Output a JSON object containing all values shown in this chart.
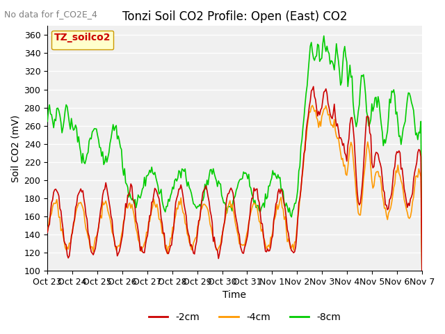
{
  "title": "Tonzi Soil CO2 Profile: Open (East) CO2",
  "subtitle": "No data for f_CO2E_4",
  "ylabel": "Soil CO2 (mV)",
  "xlabel": "Time",
  "legend_title": "TZ_soilco2",
  "ylim": [
    100,
    370
  ],
  "yticks": [
    100,
    120,
    140,
    160,
    180,
    200,
    220,
    240,
    260,
    280,
    300,
    320,
    340,
    360
  ],
  "xtick_labels": [
    "Oct 23",
    "Oct 24",
    "Oct 25",
    "Oct 26",
    "Oct 27",
    "Oct 28",
    "Oct 29",
    "Oct 30",
    "Oct 31",
    "Nov 1",
    "Nov 2",
    "Nov 3",
    "Nov 4",
    "Nov 5",
    "Nov 6",
    "Nov 7"
  ],
  "line_colors": {
    "-2cm": "#cc0000",
    "-4cm": "#ff9900",
    "-8cm": "#00cc00"
  },
  "background_color": "#ffffff",
  "plot_bg_color": "#f0f0f0",
  "grid_color": "#ffffff",
  "title_fontsize": 12,
  "label_fontsize": 10,
  "tick_fontsize": 9
}
